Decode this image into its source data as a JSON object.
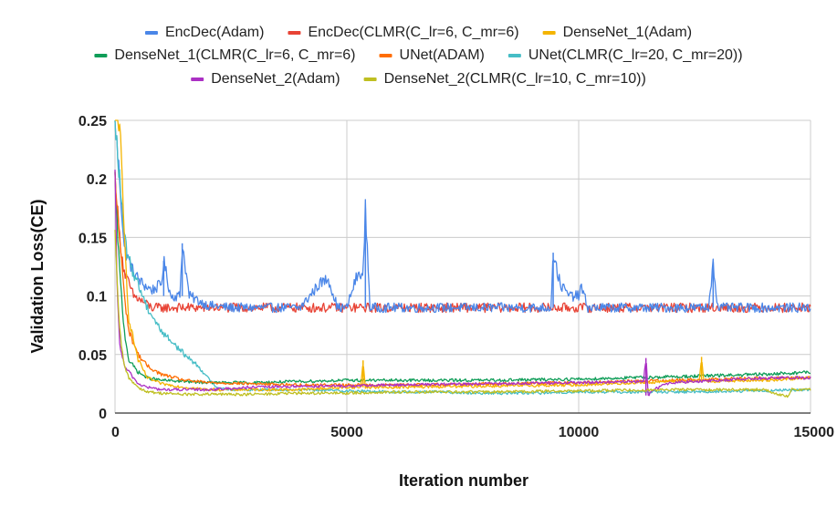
{
  "chart_data": {
    "type": "line",
    "title": "",
    "xlabel": "Iteration number",
    "ylabel": "Validation Loss(CE)",
    "xlim": [
      0,
      15000
    ],
    "ylim": [
      0,
      0.25
    ],
    "x_ticks": [
      0,
      5000,
      10000,
      15000
    ],
    "x_tick_labels": [
      "0",
      "5000",
      "10000",
      "15000"
    ],
    "y_ticks": [
      0,
      0.05,
      0.1,
      0.15,
      0.2,
      0.25
    ],
    "y_tick_labels": [
      "0",
      "0.05",
      "0.1",
      "0.15",
      "0.2",
      "0.25"
    ],
    "grid": true,
    "legend_position": "top",
    "series": [
      {
        "name": "EncDec(Adam)",
        "color": "#4a86e8",
        "x": [
          0,
          100,
          200,
          400,
          600,
          800,
          1000,
          1050,
          1200,
          1400,
          1450,
          1600,
          2000,
          2500,
          3000,
          3500,
          4000,
          4400,
          4600,
          4800,
          5000,
          5200,
          5300,
          5350,
          5400,
          5500,
          6000,
          7000,
          8000,
          9000,
          9400,
          9450,
          9600,
          9800,
          10000,
          10050,
          10200,
          11000,
          12000,
          12800,
          12900,
          13000,
          14000,
          15000
        ],
        "y": [
          0.25,
          0.2,
          0.14,
          0.12,
          0.11,
          0.105,
          0.11,
          0.13,
          0.1,
          0.1,
          0.145,
          0.1,
          0.092,
          0.09,
          0.09,
          0.09,
          0.09,
          0.11,
          0.115,
          0.09,
          0.09,
          0.115,
          0.12,
          0.115,
          0.175,
          0.09,
          0.09,
          0.09,
          0.09,
          0.09,
          0.09,
          0.137,
          0.11,
          0.1,
          0.1,
          0.108,
          0.09,
          0.09,
          0.09,
          0.09,
          0.129,
          0.09,
          0.09,
          0.09
        ]
      },
      {
        "name": "EncDec(CLMR(C_lr=6, C_mr=6)",
        "color": "#e84335",
        "x": [
          0,
          100,
          200,
          400,
          600,
          800,
          1000,
          2000,
          4000,
          6000,
          8000,
          10000,
          12000,
          14000,
          15000
        ],
        "y": [
          0.2,
          0.15,
          0.12,
          0.1,
          0.095,
          0.09,
          0.09,
          0.09,
          0.09,
          0.09,
          0.09,
          0.09,
          0.09,
          0.09,
          0.09
        ]
      },
      {
        "name": "DenseNet_1(Adam)",
        "color": "#f4b400",
        "x": [
          0,
          100,
          200,
          300,
          500,
          700,
          1000,
          1500,
          2000,
          3000,
          4000,
          5000,
          5200,
          5300,
          5350,
          5400,
          6000,
          8000,
          10000,
          12000,
          12600,
          12650,
          12700,
          14000,
          15000
        ],
        "y": [
          0.25,
          0.25,
          0.15,
          0.08,
          0.045,
          0.03,
          0.025,
          0.022,
          0.02,
          0.02,
          0.02,
          0.022,
          0.022,
          0.022,
          0.045,
          0.022,
          0.022,
          0.023,
          0.024,
          0.027,
          0.027,
          0.048,
          0.027,
          0.028,
          0.03
        ]
      },
      {
        "name": "DenseNet_1(CLMR(C_lr=6, C_mr=6)",
        "color": "#0f9d58",
        "x": [
          0,
          100,
          200,
          300,
          500,
          700,
          1000,
          1500,
          2000,
          3000,
          4000,
          5000,
          6000,
          8000,
          10000,
          12000,
          14000,
          15000
        ],
        "y": [
          0.2,
          0.12,
          0.07,
          0.045,
          0.035,
          0.03,
          0.028,
          0.027,
          0.026,
          0.026,
          0.027,
          0.028,
          0.028,
          0.028,
          0.029,
          0.031,
          0.033,
          0.035
        ]
      },
      {
        "name": "UNet(ADAM)",
        "color": "#ff6d01",
        "x": [
          0,
          100,
          200,
          300,
          500,
          700,
          1000,
          1500,
          2000,
          3000,
          4000,
          5000,
          6000,
          8000,
          10000,
          12000,
          14000,
          15000
        ],
        "y": [
          0.2,
          0.15,
          0.1,
          0.07,
          0.05,
          0.04,
          0.033,
          0.028,
          0.026,
          0.025,
          0.024,
          0.024,
          0.024,
          0.025,
          0.026,
          0.028,
          0.03,
          0.03
        ]
      },
      {
        "name": "UNet(CLMR(C_lr=20,  C_mr=20))",
        "color": "#46bdc6",
        "x": [
          0,
          100,
          200,
          300,
          500,
          700,
          1000,
          1500,
          1800,
          2000,
          2200,
          2500,
          3000,
          4000,
          5000,
          6000,
          7000,
          8000,
          9000,
          10000,
          12000,
          14000,
          15000
        ],
        "y": [
          0.25,
          0.2,
          0.15,
          0.13,
          0.11,
          0.09,
          0.07,
          0.05,
          0.04,
          0.03,
          0.022,
          0.02,
          0.02,
          0.02,
          0.019,
          0.018,
          0.018,
          0.017,
          0.017,
          0.018,
          0.018,
          0.019,
          0.02
        ]
      },
      {
        "name": "DenseNet_2(Adam)",
        "color": "#ab30c4",
        "x": [
          0,
          50,
          100,
          200,
          300,
          500,
          700,
          1000,
          2000,
          3000,
          4000,
          5000,
          6000,
          8000,
          10000,
          11400,
          11450,
          11500,
          11600,
          12000,
          13000,
          14000,
          15000
        ],
        "y": [
          0.2,
          0.1,
          0.06,
          0.04,
          0.035,
          0.025,
          0.022,
          0.02,
          0.02,
          0.022,
          0.023,
          0.023,
          0.024,
          0.025,
          0.026,
          0.027,
          0.047,
          0.015,
          0.02,
          0.026,
          0.028,
          0.03,
          0.03
        ]
      },
      {
        "name": "DenseNet_2(CLMR(C_lr=10,  C_mr=10))",
        "color": "#bfbf21",
        "x": [
          0,
          100,
          200,
          300,
          500,
          700,
          1000,
          1500,
          2000,
          2500,
          3000,
          4000,
          5000,
          6000,
          8000,
          10000,
          12000,
          14000,
          14500,
          14600,
          15000
        ],
        "y": [
          0.15,
          0.07,
          0.04,
          0.03,
          0.022,
          0.018,
          0.017,
          0.016,
          0.016,
          0.016,
          0.016,
          0.017,
          0.017,
          0.018,
          0.018,
          0.019,
          0.02,
          0.02,
          0.014,
          0.02,
          0.02
        ]
      }
    ]
  }
}
